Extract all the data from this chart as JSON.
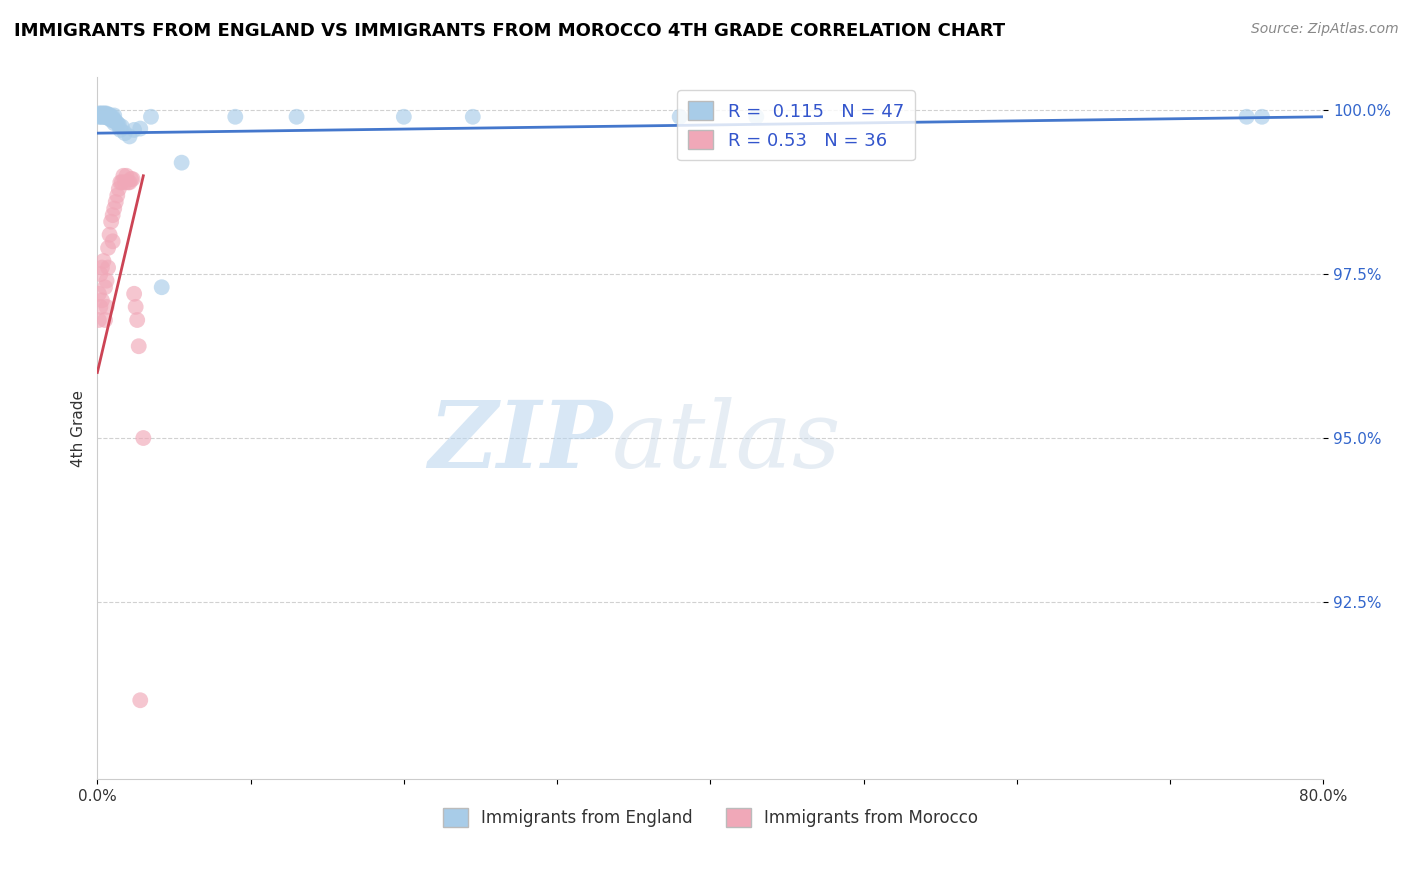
{
  "title": "IMMIGRANTS FROM ENGLAND VS IMMIGRANTS FROM MOROCCO 4TH GRADE CORRELATION CHART",
  "source": "Source: ZipAtlas.com",
  "xlabel": "",
  "ylabel": "4th Grade",
  "xmin": 0.0,
  "xmax": 0.8,
  "ymin": 0.898,
  "ymax": 1.005,
  "yticks": [
    0.925,
    0.95,
    0.975,
    1.0
  ],
  "ytick_labels": [
    "92.5%",
    "95.0%",
    "97.5%",
    "100.0%"
  ],
  "xticks": [
    0.0,
    0.1,
    0.2,
    0.3,
    0.4,
    0.5,
    0.6,
    0.7,
    0.8
  ],
  "xtick_labels": [
    "0.0%",
    "",
    "",
    "",
    "",
    "",
    "",
    "",
    "80.0%"
  ],
  "england_color": "#a8cce8",
  "morocco_color": "#f0a8b8",
  "england_R": 0.115,
  "england_N": 47,
  "morocco_R": 0.53,
  "morocco_N": 36,
  "england_line_color": "#4477cc",
  "morocco_line_color": "#cc4455",
  "watermark_zip": "ZIP",
  "watermark_atlas": "atlas",
  "england_x": [
    0.001,
    0.001,
    0.002,
    0.002,
    0.003,
    0.003,
    0.003,
    0.004,
    0.004,
    0.004,
    0.005,
    0.005,
    0.005,
    0.006,
    0.006,
    0.006,
    0.007,
    0.007,
    0.008,
    0.008,
    0.009,
    0.009,
    0.01,
    0.01,
    0.011,
    0.011,
    0.011,
    0.012,
    0.013,
    0.014,
    0.015,
    0.016,
    0.018,
    0.021,
    0.024,
    0.028,
    0.035,
    0.042,
    0.055,
    0.09,
    0.13,
    0.2,
    0.245,
    0.38,
    0.43,
    0.75,
    0.76
  ],
  "england_y": [
    0.9995,
    0.999,
    0.9995,
    0.999,
    0.9995,
    0.9993,
    0.999,
    0.9995,
    0.9993,
    0.999,
    0.9995,
    0.9993,
    0.999,
    0.9995,
    0.9993,
    0.999,
    0.9993,
    0.9988,
    0.9993,
    0.9988,
    0.999,
    0.9985,
    0.999,
    0.9985,
    0.9992,
    0.9985,
    0.998,
    0.9983,
    0.998,
    0.9978,
    0.997,
    0.9975,
    0.9965,
    0.996,
    0.997,
    0.9972,
    0.999,
    0.973,
    0.992,
    0.999,
    0.999,
    0.999,
    0.999,
    0.999,
    0.999,
    0.999,
    0.999
  ],
  "morocco_x": [
    0.001,
    0.001,
    0.002,
    0.002,
    0.003,
    0.003,
    0.004,
    0.005,
    0.005,
    0.006,
    0.006,
    0.007,
    0.007,
    0.008,
    0.009,
    0.01,
    0.01,
    0.011,
    0.012,
    0.013,
    0.014,
    0.015,
    0.016,
    0.017,
    0.018,
    0.019,
    0.02,
    0.021,
    0.022,
    0.023,
    0.024,
    0.025,
    0.026,
    0.027,
    0.028,
    0.03
  ],
  "morocco_y": [
    0.972,
    0.968,
    0.975,
    0.97,
    0.976,
    0.971,
    0.977,
    0.973,
    0.968,
    0.974,
    0.97,
    0.976,
    0.979,
    0.981,
    0.983,
    0.984,
    0.98,
    0.985,
    0.986,
    0.987,
    0.988,
    0.989,
    0.989,
    0.99,
    0.989,
    0.99,
    0.989,
    0.989,
    0.9895,
    0.9895,
    0.972,
    0.97,
    0.968,
    0.964,
    0.91,
    0.95
  ],
  "eng_line_x0": 0.0,
  "eng_line_x1": 0.8,
  "eng_line_y0": 0.9965,
  "eng_line_y1": 0.999,
  "mor_line_x0": 0.0,
  "mor_line_x1": 0.03,
  "mor_line_y0": 0.96,
  "mor_line_y1": 0.99
}
